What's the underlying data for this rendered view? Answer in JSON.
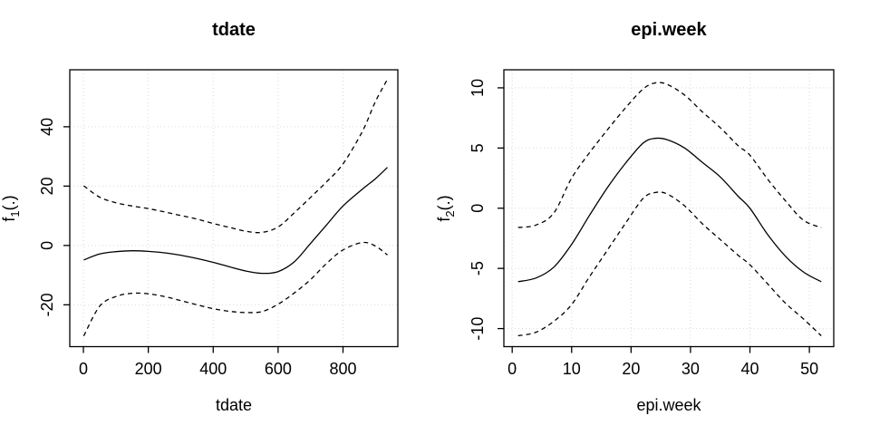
{
  "figure": {
    "background": "#ffffff",
    "line_color": "#000000",
    "grid_color": "#d9d9d9",
    "text_color": "#000000"
  },
  "chart_data": [
    {
      "type": "line",
      "title": "tdate",
      "xlabel": "tdate",
      "ylabel": "f1(.)",
      "ylabel_parts": {
        "prefix": "f",
        "sub": "1",
        "suffix": "(.)"
      },
      "grid": true,
      "legend": null,
      "xticks": [
        0,
        200,
        400,
        600,
        800
      ],
      "yticks": [
        -20,
        0,
        20,
        40
      ],
      "xlim": [
        -42,
        969
      ],
      "ylim": [
        -34.1,
        59.2
      ],
      "x": [
        1,
        50,
        100,
        150,
        200,
        250,
        300,
        350,
        400,
        450,
        500,
        550,
        600,
        650,
        700,
        750,
        800,
        860,
        900,
        937
      ],
      "series": [
        {
          "name": "fit",
          "style": "solid",
          "values": [
            -4.9,
            -2.9,
            -2.1,
            -1.8,
            -2.0,
            -2.5,
            -3.3,
            -4.4,
            -5.7,
            -7.2,
            -8.6,
            -9.4,
            -8.8,
            -5.5,
            0.7,
            7.0,
            13.3,
            19.0,
            22.5,
            26.3
          ]
        },
        {
          "name": "upper-ci",
          "style": "dashed",
          "values": [
            20.1,
            16.3,
            14.4,
            13.3,
            12.4,
            11.3,
            10.1,
            8.9,
            7.4,
            6.1,
            4.8,
            4.4,
            6.2,
            11.0,
            16.2,
            21.5,
            27.5,
            38.5,
            48.5,
            56.0
          ]
        },
        {
          "name": "lower-ci",
          "style": "dashed",
          "values": [
            -30.5,
            -20.5,
            -17.2,
            -16.1,
            -16.3,
            -17.2,
            -18.6,
            -20.0,
            -21.3,
            -22.2,
            -22.6,
            -22.3,
            -19.8,
            -16.0,
            -11.5,
            -6.0,
            -1.5,
            1.0,
            -0.2,
            -3.2
          ]
        }
      ]
    },
    {
      "type": "line",
      "title": "epi.week",
      "xlabel": "epi.week",
      "ylabel": "f2(.)",
      "ylabel_parts": {
        "prefix": "f",
        "sub": "2",
        "suffix": "(.)"
      },
      "grid": true,
      "legend": null,
      "xticks": [
        0,
        10,
        20,
        30,
        40,
        50
      ],
      "yticks": [
        -10,
        -5,
        0,
        5,
        10
      ],
      "xlim": [
        -1.4,
        54.1
      ],
      "ylim": [
        -11.5,
        11.5
      ],
      "x": [
        1,
        4,
        7,
        10,
        13,
        16,
        19,
        22,
        24,
        26,
        29,
        32,
        35,
        38,
        40,
        43,
        46,
        49,
        52
      ],
      "series": [
        {
          "name": "fit",
          "style": "solid",
          "values": [
            -6.1,
            -5.8,
            -4.9,
            -3.0,
            -0.6,
            1.7,
            3.7,
            5.4,
            5.8,
            5.7,
            5.0,
            3.8,
            2.6,
            1.0,
            0.0,
            -2.2,
            -4.0,
            -5.3,
            -6.1
          ]
        },
        {
          "name": "upper-ci",
          "style": "dashed",
          "values": [
            -1.6,
            -1.4,
            -0.4,
            2.5,
            4.6,
            6.5,
            8.3,
            9.9,
            10.4,
            10.3,
            9.4,
            8.0,
            6.7,
            5.2,
            4.4,
            2.4,
            0.6,
            -1.0,
            -1.6
          ]
        },
        {
          "name": "lower-ci",
          "style": "dashed",
          "values": [
            -10.6,
            -10.3,
            -9.4,
            -8.0,
            -5.7,
            -3.5,
            -1.3,
            0.8,
            1.3,
            1.2,
            0.2,
            -1.3,
            -2.6,
            -3.9,
            -4.7,
            -6.3,
            -7.9,
            -9.2,
            -10.6
          ]
        }
      ]
    }
  ]
}
